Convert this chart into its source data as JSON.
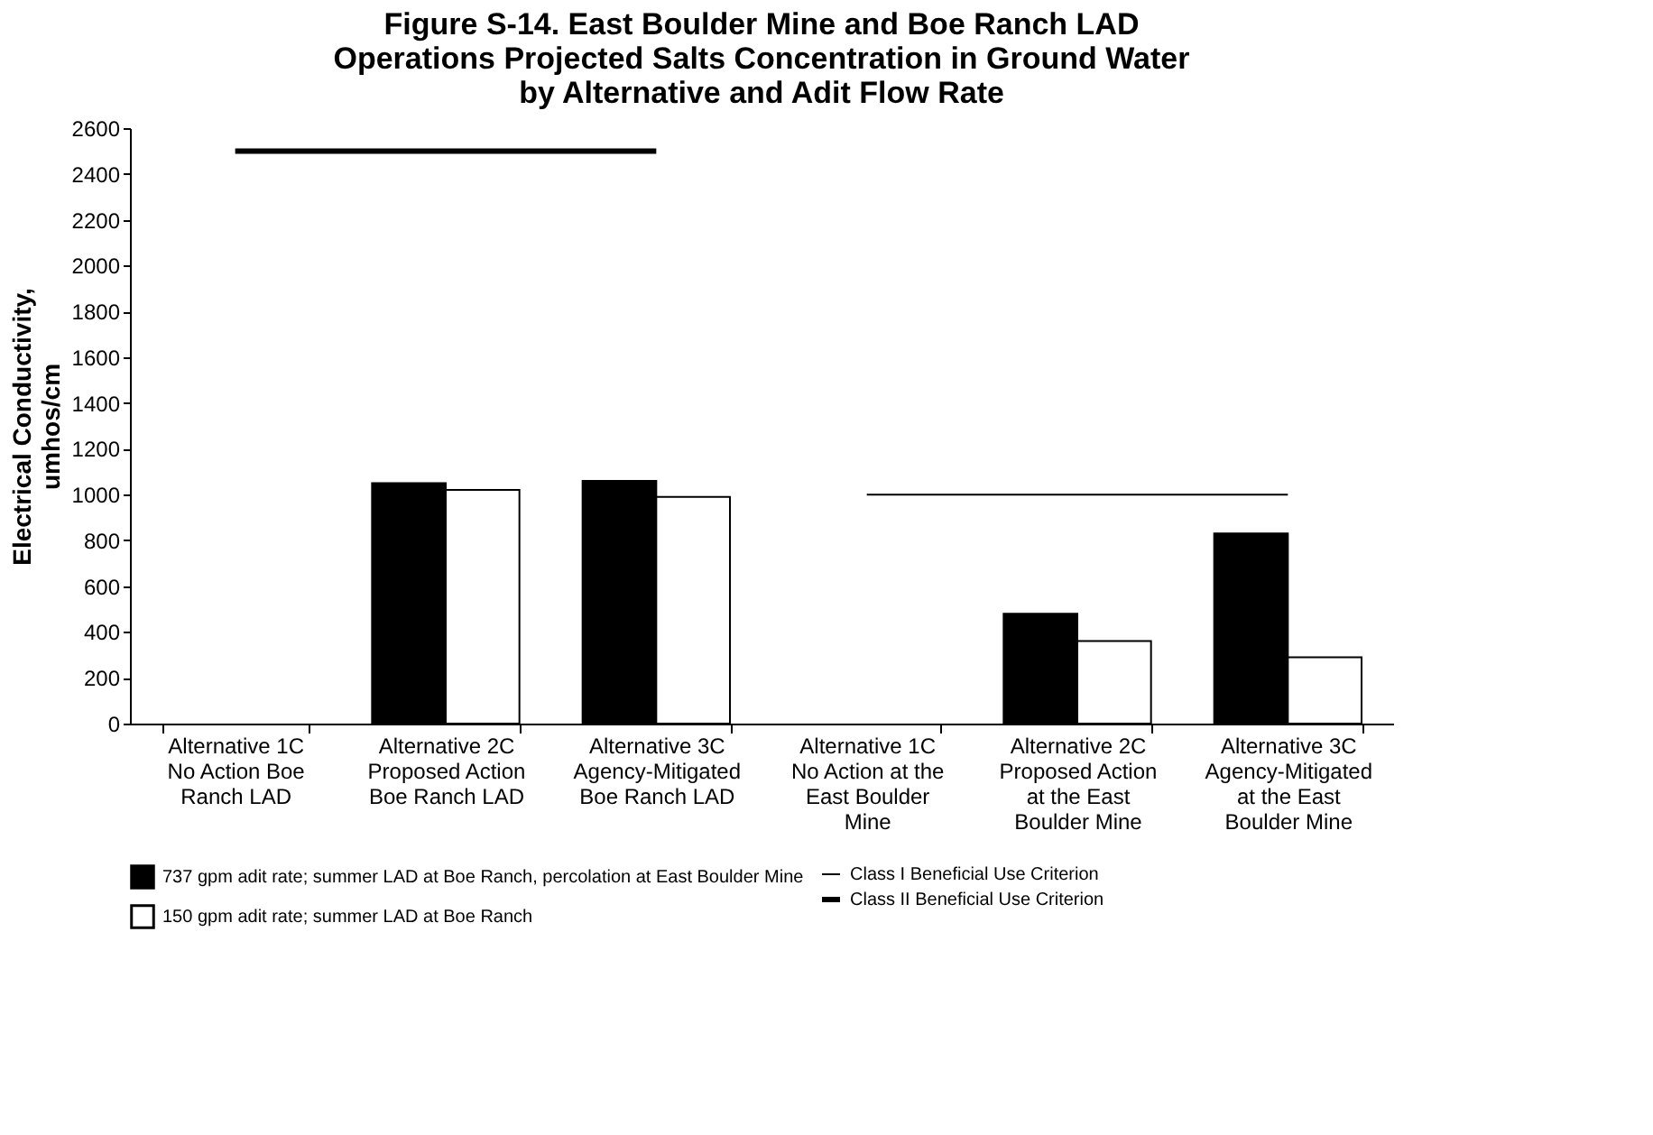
{
  "chart_data": {
    "type": "bar",
    "title": "Figure S-14.  East Boulder Mine and Boe Ranch LAD Operations Projected Salts Concentration in Ground Water by Alternative and Adit Flow Rate",
    "ylabel": "Electrical Conductivity, umhos/cm",
    "categories": [
      "Alternative 1C No Action Boe Ranch LAD",
      "Alternative 2C Proposed Action Boe Ranch LAD",
      "Alternative 3C Agency-Mitigated Boe Ranch LAD",
      "Alternative 1C No Action at the East Boulder Mine",
      "Alternative 2C Proposed Action at the East Boulder Mine",
      "Alternative 3C Agency-Mitigated at the East Boulder Mine"
    ],
    "series": [
      {
        "name": "737 gpm adit rate; summer LAD at Boe Ranch, percolation at East Boulder Mine",
        "color": "#000000",
        "values": [
          null,
          1050,
          1060,
          null,
          480,
          830
        ]
      },
      {
        "name": "150 gpm adit rate; summer LAD at Boe Ranch",
        "color": "#ffffff",
        "values": [
          null,
          1020,
          990,
          null,
          360,
          290
        ]
      },
      {
        "name": "Class I Beneficial Use Criterion",
        "type": "line",
        "color": "#000000",
        "values": [
          null,
          null,
          null,
          1000,
          1000,
          1000
        ]
      },
      {
        "name": "Class II Beneficial Use Criterion",
        "type": "line",
        "color": "#000000",
        "values": [
          2500,
          2500,
          2500,
          null,
          null,
          null
        ]
      }
    ],
    "ylim": [
      0,
      2600
    ],
    "yticks": [
      0,
      200,
      400,
      600,
      800,
      1000,
      1200,
      1400,
      1600,
      1800,
      2000,
      2200,
      2400,
      2600
    ],
    "grid": false,
    "legend": "bottom"
  }
}
